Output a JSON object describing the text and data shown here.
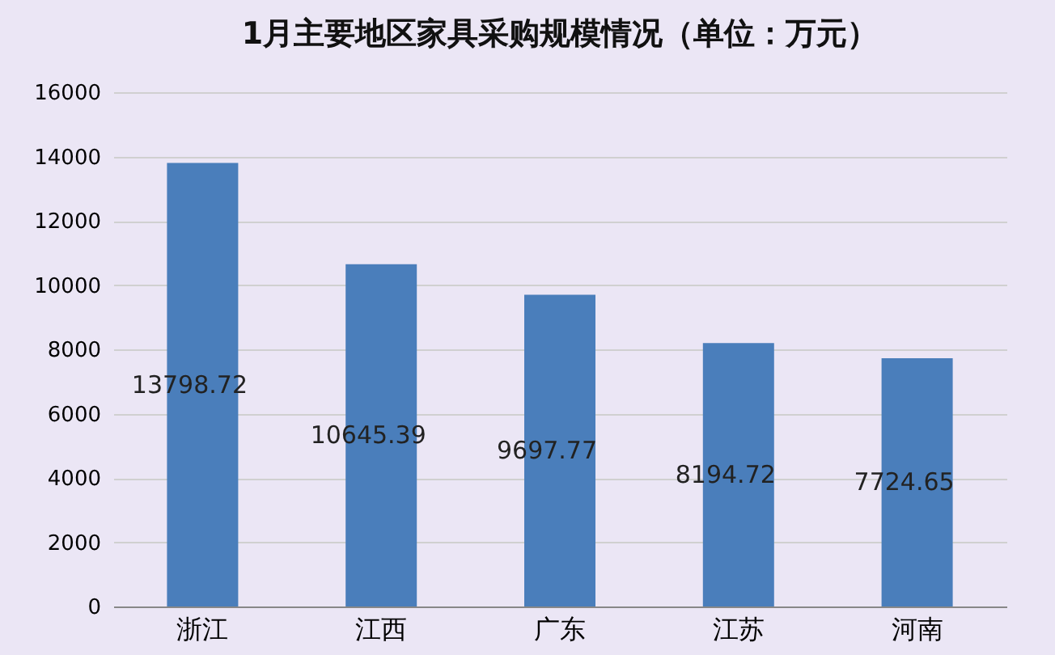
{
  "chart_data": {
    "type": "bar",
    "title": "1月主要地区家具采购规模情况（单位：万元）",
    "categories": [
      "浙江",
      "江西",
      "广东",
      "江苏",
      "河南"
    ],
    "values": [
      13798.72,
      10645.39,
      9697.77,
      8194.72,
      7724.65
    ],
    "color": "#4a7ebb",
    "ylim": [
      0,
      16000
    ],
    "yticks": [
      0,
      2000,
      4000,
      6000,
      8000,
      10000,
      12000,
      14000,
      16000
    ],
    "grid": "y",
    "data_labels": true
  }
}
